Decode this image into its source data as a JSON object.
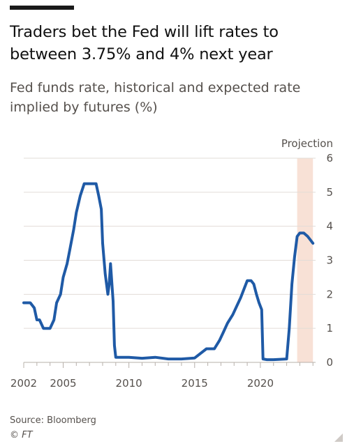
{
  "title": "Traders bet the Fed will lift rates to between 3.75% and 4% next year",
  "subtitle": "Fed funds rate, historical and expected rate implied by futures (%)",
  "source": "Source: Bloomberg",
  "credit": "© FT",
  "colors": {
    "line": "#1f5aa6",
    "projection_band": "#f8e1d6",
    "gridline": "#e2dcd7",
    "axis": "#b7b0aa",
    "text": "#55504c"
  },
  "chart_data": {
    "type": "line",
    "title": "Traders bet the Fed will lift rates to between 3.75% and 4% next year",
    "subtitle": "Fed funds rate, historical and expected rate implied by futures (%)",
    "xlabel": "",
    "ylabel": "",
    "xlim": [
      2002.0,
      2024.2
    ],
    "ylim": [
      0,
      6
    ],
    "xticks": [
      2002,
      2005,
      2010,
      2015,
      2020
    ],
    "yticks": [
      0,
      1,
      2,
      3,
      4,
      5,
      6
    ],
    "grid": true,
    "y_axis_side": "right",
    "projection": {
      "label": "Projection",
      "x_start": 2022.8,
      "x_end": 2024.0
    },
    "series": [
      {
        "x": [
          2002.0,
          2002.2,
          2002.5,
          2002.8,
          2003.0,
          2003.2,
          2003.5,
          2003.8,
          2004.0,
          2004.3,
          2004.5,
          2004.8,
          2005.0,
          2005.3,
          2005.5,
          2005.8,
          2006.0,
          2006.3,
          2006.6,
          2006.9,
          2007.2,
          2007.5,
          2007.7,
          2007.9,
          2008.0,
          2008.2,
          2008.4,
          2008.5,
          2008.6,
          2008.8,
          2008.9,
          2009.0,
          2010.0,
          2011.0,
          2012.0,
          2013.0,
          2014.0,
          2015.0,
          2015.9,
          2016.2,
          2016.5,
          2016.9,
          2017.2,
          2017.5,
          2017.9,
          2018.2,
          2018.5,
          2018.8,
          2019.0,
          2019.3,
          2019.5,
          2019.7,
          2019.9,
          2020.1,
          2020.2,
          2020.5,
          2021.0,
          2022.0,
          2022.2,
          2022.4,
          2022.6,
          2022.8,
          2023.0,
          2023.3,
          2023.6,
          2023.8,
          2024.0
        ],
        "values": [
          1.75,
          1.75,
          1.75,
          1.6,
          1.25,
          1.25,
          1.0,
          1.0,
          1.0,
          1.25,
          1.75,
          2.0,
          2.5,
          2.9,
          3.3,
          3.9,
          4.4,
          4.9,
          5.25,
          5.25,
          5.25,
          5.25,
          4.9,
          4.5,
          3.5,
          2.6,
          2.0,
          2.3,
          2.9,
          1.8,
          0.5,
          0.15,
          0.15,
          0.12,
          0.15,
          0.1,
          0.1,
          0.13,
          0.4,
          0.4,
          0.4,
          0.65,
          0.9,
          1.15,
          1.4,
          1.65,
          1.9,
          2.2,
          2.4,
          2.4,
          2.3,
          2.0,
          1.75,
          1.55,
          0.1,
          0.08,
          0.08,
          0.1,
          1.0,
          2.3,
          3.1,
          3.7,
          3.8,
          3.8,
          3.7,
          3.6,
          3.5
        ]
      }
    ]
  }
}
